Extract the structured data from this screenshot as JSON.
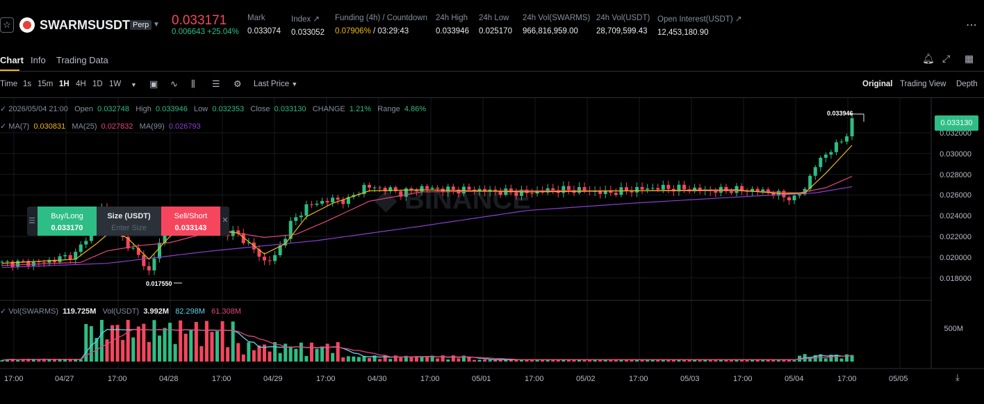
{
  "header": {
    "star": "☆",
    "symbol": "SWARMSUSDT",
    "badge": "Perp",
    "last_price": "0.033171",
    "change": "0.006643 +25.04%",
    "stats": [
      {
        "label": "Mark",
        "value": "0.033074"
      },
      {
        "label": "Index ↗",
        "value": "0.033052"
      },
      {
        "label": "Funding (4h) / Countdown",
        "value_rate": "0.07906%",
        "value_time": " / 03:29:43"
      },
      {
        "label": "24h High",
        "value": "0.033946"
      },
      {
        "label": "24h Low",
        "value": "0.025170"
      },
      {
        "label": "24h Vol(SWARMS)",
        "value": "966,816,959.00"
      },
      {
        "label": "24h Vol(USDT)",
        "value": "28,709,599.43"
      },
      {
        "label": "Open Interest(USDT) ↗",
        "value": "12,453,180.90"
      }
    ]
  },
  "tabs": [
    "Chart",
    "Info",
    "Trading Data"
  ],
  "toolbar": {
    "intervals": [
      "Time",
      "1s",
      "15m",
      "1H",
      "4H",
      "1D",
      "1W"
    ],
    "active_interval": "1H",
    "price_type": "Last Price",
    "views": [
      "Original",
      "Trading View",
      "Depth"
    ]
  },
  "ohlc": {
    "date": "2026/05/04 21:00",
    "open_label": "Open",
    "open": "0.032748",
    "high_label": "High",
    "high": "0.033946",
    "low_label": "Low",
    "low": "0.032353",
    "close_label": "Close",
    "close": "0.033130",
    "change_label": "CHANGE",
    "change": "1.21%",
    "range_label": "Range",
    "range": "4.86%"
  },
  "ma": {
    "ma7_label": "MA(7)",
    "ma7": "0.030831",
    "ma25_label": "MA(25)",
    "ma25": "0.027832",
    "ma99_label": "MA(99)",
    "ma99": "0.026793"
  },
  "vol": {
    "swarms_label": "Vol(SWARMS)",
    "swarms": "119.725M",
    "usdt_label": "Vol(USDT)",
    "usdt": "3.992M",
    "ma1": "82.298M",
    "ma2": "61.308M"
  },
  "trade_widget": {
    "buy_label": "Buy/Long",
    "buy_price": "0.033170",
    "size_label": "Size (USDT)",
    "size_placeholder": "Enter Size",
    "sell_label": "Sell/Short",
    "sell_price": "0.033143"
  },
  "chart_data": {
    "type": "candlestick",
    "interval": "1H",
    "y_ticks": [
      "0.032000",
      "0.030000",
      "0.028000",
      "0.026000",
      "0.024000",
      "0.022000",
      "0.020000",
      "0.018000"
    ],
    "x_ticks": [
      "17:00",
      "04/27",
      "17:00",
      "04/28",
      "17:00",
      "04/29",
      "17:00",
      "04/30",
      "17:00",
      "05/01",
      "17:00",
      "05/02",
      "17:00",
      "05/03",
      "17:00",
      "05/04",
      "17:00",
      "05/05"
    ],
    "last_price_tag": "0.033130",
    "high_marker": "0.033946",
    "low_marker": "0.017550",
    "vol_axis_tick": "500M",
    "close_path": [
      [
        0,
        0.0194
      ],
      [
        8,
        0.0195
      ],
      [
        14,
        0.0203
      ],
      [
        17,
        0.0226
      ],
      [
        19,
        0.0248
      ],
      [
        21,
        0.0231
      ],
      [
        23,
        0.0218
      ],
      [
        26,
        0.0201
      ],
      [
        28,
        0.0186
      ],
      [
        30,
        0.0213
      ],
      [
        32,
        0.024
      ],
      [
        34,
        0.0231
      ],
      [
        36,
        0.0239
      ],
      [
        39,
        0.0229
      ],
      [
        42,
        0.0225
      ],
      [
        45,
        0.0222
      ],
      [
        48,
        0.0207
      ],
      [
        50,
        0.0196
      ],
      [
        52,
        0.02
      ],
      [
        55,
        0.0232
      ],
      [
        58,
        0.0249
      ],
      [
        62,
        0.0255
      ],
      [
        66,
        0.0255
      ],
      [
        69,
        0.0268
      ],
      [
        73,
        0.0266
      ],
      [
        76,
        0.0262
      ],
      [
        80,
        0.0267
      ],
      [
        85,
        0.0265
      ],
      [
        90,
        0.0265
      ],
      [
        95,
        0.0263
      ],
      [
        100,
        0.0262
      ],
      [
        105,
        0.0265
      ],
      [
        110,
        0.0265
      ],
      [
        115,
        0.0262
      ],
      [
        120,
        0.0265
      ],
      [
        125,
        0.0267
      ],
      [
        130,
        0.0266
      ],
      [
        135,
        0.0264
      ],
      [
        140,
        0.0265
      ],
      [
        145,
        0.0264
      ],
      [
        149,
        0.0259
      ],
      [
        151,
        0.0256
      ],
      [
        153,
        0.0267
      ],
      [
        155,
        0.0288
      ],
      [
        157,
        0.03
      ],
      [
        159,
        0.0307
      ],
      [
        161,
        0.0319
      ],
      [
        162,
        0.0331
      ]
    ],
    "ma7_path": [
      [
        0,
        0.0194
      ],
      [
        14,
        0.0198
      ],
      [
        18,
        0.0213
      ],
      [
        21,
        0.0226
      ],
      [
        24,
        0.0218
      ],
      [
        28,
        0.0198
      ],
      [
        32,
        0.022
      ],
      [
        36,
        0.0232
      ],
      [
        40,
        0.0228
      ],
      [
        45,
        0.0223
      ],
      [
        50,
        0.0203
      ],
      [
        54,
        0.0213
      ],
      [
        58,
        0.0239
      ],
      [
        63,
        0.0252
      ],
      [
        70,
        0.0264
      ],
      [
        80,
        0.0265
      ],
      [
        100,
        0.0263
      ],
      [
        120,
        0.0264
      ],
      [
        140,
        0.0265
      ],
      [
        149,
        0.0261
      ],
      [
        153,
        0.0262
      ],
      [
        157,
        0.0281
      ],
      [
        162,
        0.0308
      ]
    ],
    "ma25_path": [
      [
        0,
        0.0192
      ],
      [
        15,
        0.0195
      ],
      [
        20,
        0.0206
      ],
      [
        26,
        0.0211
      ],
      [
        32,
        0.0214
      ],
      [
        38,
        0.0222
      ],
      [
        44,
        0.0224
      ],
      [
        50,
        0.0219
      ],
      [
        56,
        0.0222
      ],
      [
        62,
        0.0235
      ],
      [
        70,
        0.0254
      ],
      [
        80,
        0.0263
      ],
      [
        100,
        0.0264
      ],
      [
        140,
        0.0264
      ],
      [
        152,
        0.0262
      ],
      [
        157,
        0.0267
      ],
      [
        162,
        0.0278
      ]
    ],
    "ma99_path": [
      [
        0,
        0.019
      ],
      [
        20,
        0.0194
      ],
      [
        40,
        0.0206
      ],
      [
        60,
        0.0216
      ],
      [
        80,
        0.023
      ],
      [
        100,
        0.0245
      ],
      [
        120,
        0.0252
      ],
      [
        140,
        0.0258
      ],
      [
        155,
        0.0262
      ],
      [
        162,
        0.0268
      ]
    ]
  }
}
